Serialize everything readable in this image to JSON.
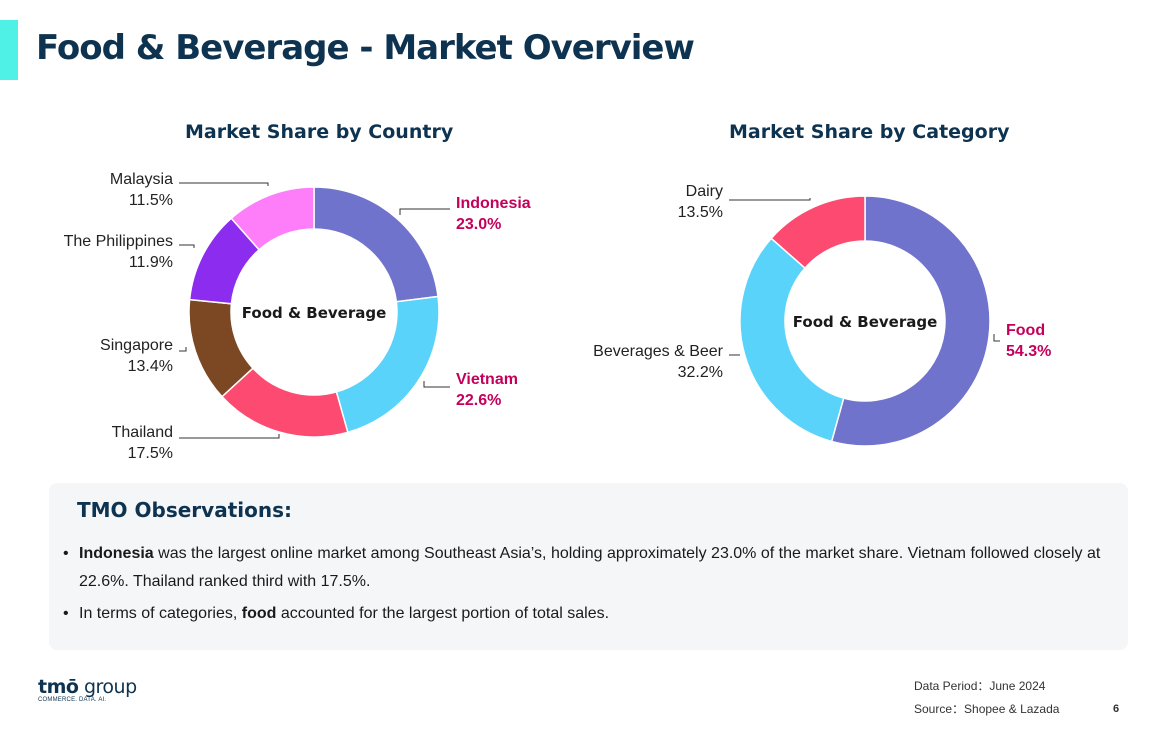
{
  "page": {
    "title": "Food & Beverage - Market Overview",
    "page_number": "6",
    "accent_color": "#4ff0e6",
    "title_color": "#0e3350"
  },
  "chart_data": [
    {
      "type": "pie",
      "title": "Market Share by Country",
      "center_label": "Food & Beverage",
      "slices": [
        {
          "label": "Indonesia",
          "value": 23.0,
          "display": "23.0%",
          "color": "#7073cc",
          "highlight": true
        },
        {
          "label": "Vietnam",
          "value": 22.6,
          "display": "22.6%",
          "color": "#5ad3fa",
          "highlight": true
        },
        {
          "label": "Thailand",
          "value": 17.5,
          "display": "17.5%",
          "color": "#fc4a70",
          "highlight": false
        },
        {
          "label": "Singapore",
          "value": 13.4,
          "display": "13.4%",
          "color": "#7c4823",
          "highlight": false
        },
        {
          "label": "The Philippines",
          "value": 11.9,
          "display": "11.9%",
          "color": "#8b2cef",
          "highlight": false
        },
        {
          "label": "Malaysia",
          "value": 11.5,
          "display": "11.5%",
          "color": "#fd7ef8",
          "highlight": false
        }
      ]
    },
    {
      "type": "pie",
      "title": "Market Share by Category",
      "center_label": "Food & Beverage",
      "slices": [
        {
          "label": "Food",
          "value": 54.3,
          "display": "54.3%",
          "color": "#7073cc",
          "highlight": true
        },
        {
          "label": "Beverages & Beer",
          "value": 32.2,
          "display": "32.2%",
          "color": "#5ad3fa",
          "highlight": false
        },
        {
          "label": "Dairy",
          "value": 13.5,
          "display": "13.5%",
          "color": "#fc4a70",
          "highlight": false
        }
      ]
    }
  ],
  "label_colors": {
    "highlight": "#c4005b",
    "normal": "#222222"
  },
  "observations": {
    "title": "TMO Observations:",
    "items": [
      {
        "bold": "Indonesia",
        "text": " was the largest online market among Southeast Asia’s, holding approximately 23.0% of the market share. Vietnam followed closely at 22.6%. Thailand ranked third with 17.5%."
      },
      {
        "pre": "In terms of categories, ",
        "bold": "food",
        "text": " accounted for the largest portion of total sales."
      }
    ]
  },
  "footer": {
    "logo_brand": "tmō",
    "logo_word": " group",
    "logo_tagline": "COMMERCE. DATA. AI.",
    "data_period": "Data Period：June 2024",
    "source": "Source：Shopee & Lazada"
  }
}
